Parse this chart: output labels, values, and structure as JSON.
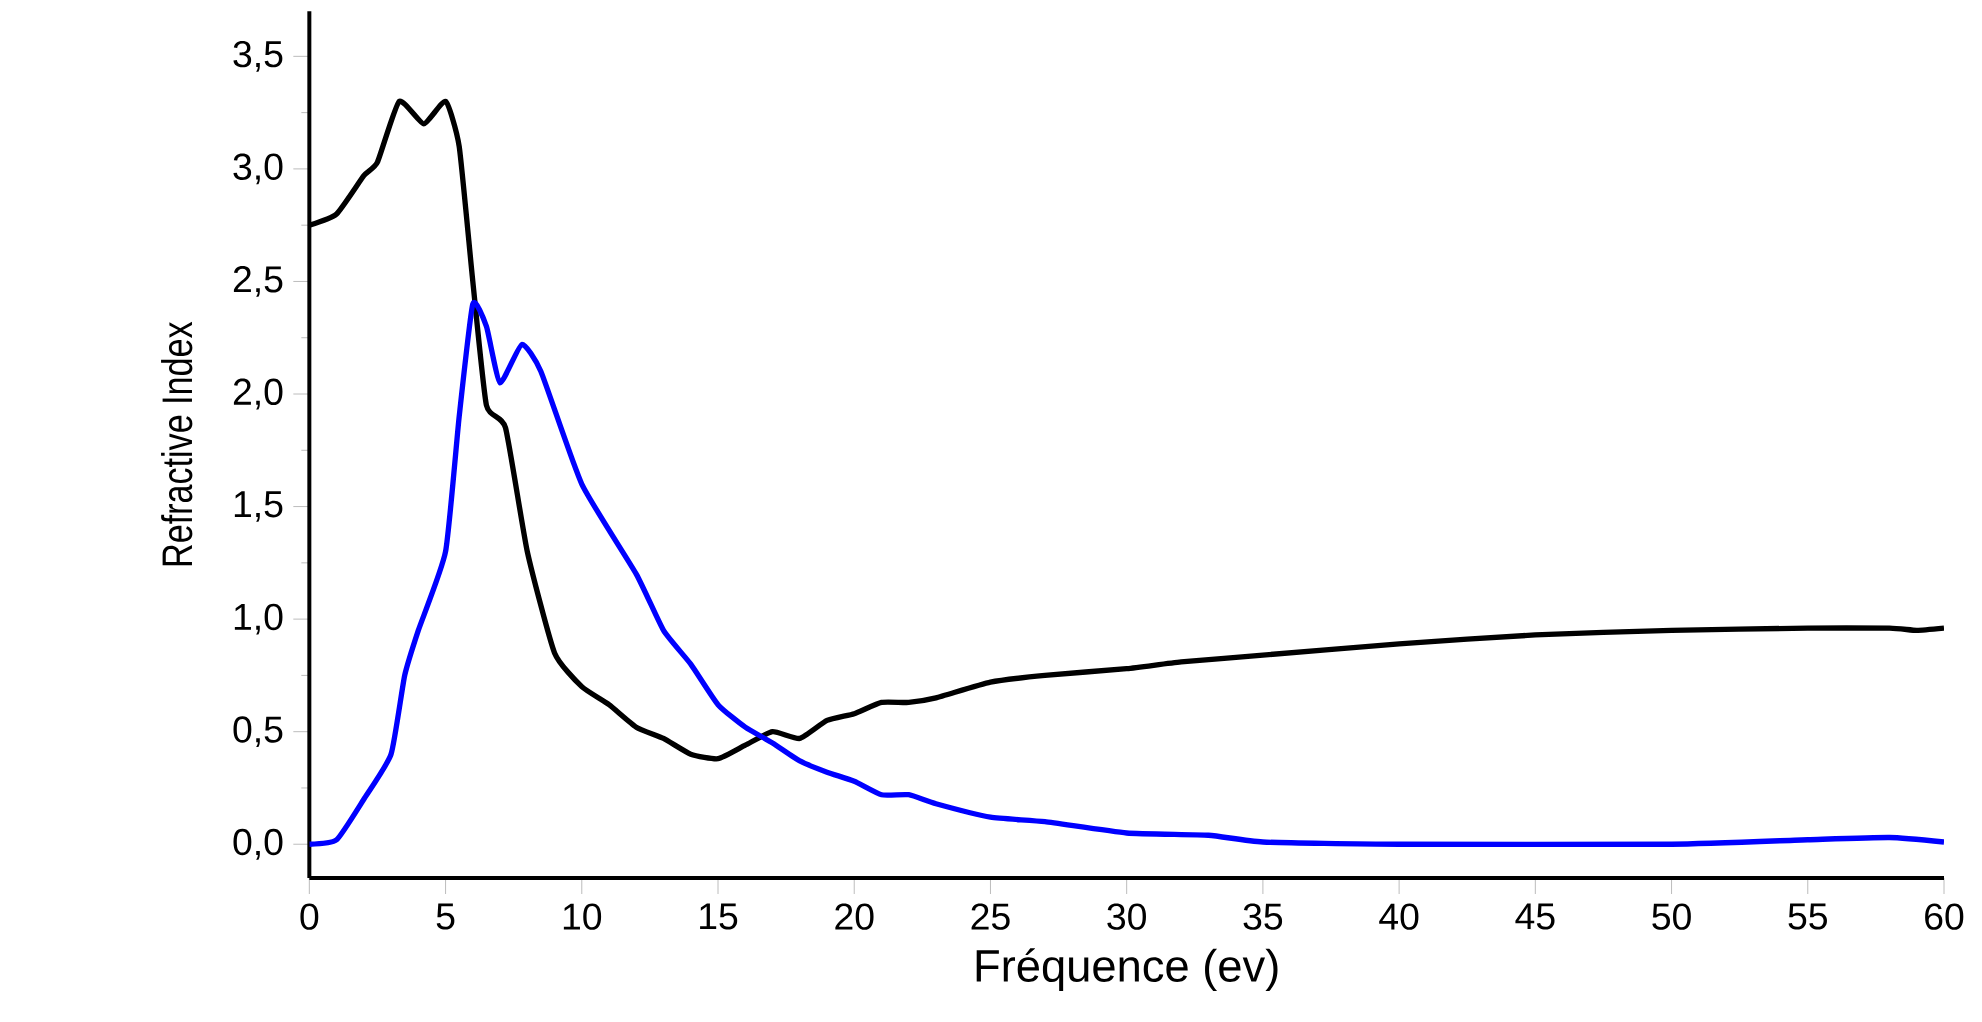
{
  "chart_data": {
    "type": "line",
    "xlabel": "Fréquence (ev)",
    "ylabel": "Refractive Index",
    "xlim": [
      0,
      60
    ],
    "ylim": [
      -0.15,
      3.7
    ],
    "xticks": [
      0,
      5,
      10,
      15,
      20,
      25,
      30,
      35,
      40,
      45,
      50,
      55,
      60
    ],
    "yticks": [
      {
        "value": 0,
        "label": "0,0"
      },
      {
        "value": 0.5,
        "label": "0,5"
      },
      {
        "value": 1,
        "label": "1,0"
      },
      {
        "value": 1.5,
        "label": "1,5"
      },
      {
        "value": 2,
        "label": "2,0"
      },
      {
        "value": 2.5,
        "label": "2,5"
      },
      {
        "value": 3,
        "label": "3,0"
      },
      {
        "value": 3.5,
        "label": "3,5"
      }
    ],
    "grid": false,
    "line_style": "solid",
    "marker": "none",
    "series": [
      {
        "color": "#000000",
        "x": [
          0,
          1,
          2,
          2.5,
          3.3,
          4.2,
          5,
          5.5,
          6,
          6.5,
          7.2,
          8,
          9,
          10,
          11,
          12,
          13,
          14,
          15,
          16,
          17,
          18,
          19,
          20,
          21,
          22,
          23,
          25,
          27,
          30,
          32,
          35,
          40,
          45,
          50,
          55,
          58,
          59,
          60
        ],
        "values": [
          2.75,
          2.8,
          2.97,
          3.03,
          3.3,
          3.2,
          3.3,
          3.1,
          2.5,
          1.95,
          1.85,
          1.3,
          0.85,
          0.7,
          0.62,
          0.52,
          0.47,
          0.4,
          0.38,
          0.44,
          0.5,
          0.47,
          0.55,
          0.58,
          0.63,
          0.63,
          0.65,
          0.72,
          0.75,
          0.78,
          0.81,
          0.84,
          0.89,
          0.93,
          0.95,
          0.96,
          0.96,
          0.95,
          0.96
        ]
      },
      {
        "color": "#0000ff",
        "x": [
          0,
          1,
          2,
          3,
          3.5,
          4,
          5,
          5.5,
          6,
          6.5,
          7,
          7.8,
          8.5,
          10,
          12,
          13,
          14,
          15,
          16,
          17,
          18,
          19,
          20,
          21,
          22,
          23,
          25,
          27,
          30,
          33,
          35,
          40,
          50,
          55,
          58,
          60
        ],
        "values": [
          0,
          0.02,
          0.2,
          0.4,
          0.75,
          0.95,
          1.3,
          1.9,
          2.4,
          2.3,
          2.05,
          2.22,
          2.1,
          1.6,
          1.2,
          0.95,
          0.8,
          0.62,
          0.52,
          0.45,
          0.37,
          0.32,
          0.28,
          0.22,
          0.22,
          0.18,
          0.12,
          0.1,
          0.05,
          0.04,
          0.01,
          0,
          0,
          0.02,
          0.03,
          0.01
        ]
      }
    ]
  }
}
